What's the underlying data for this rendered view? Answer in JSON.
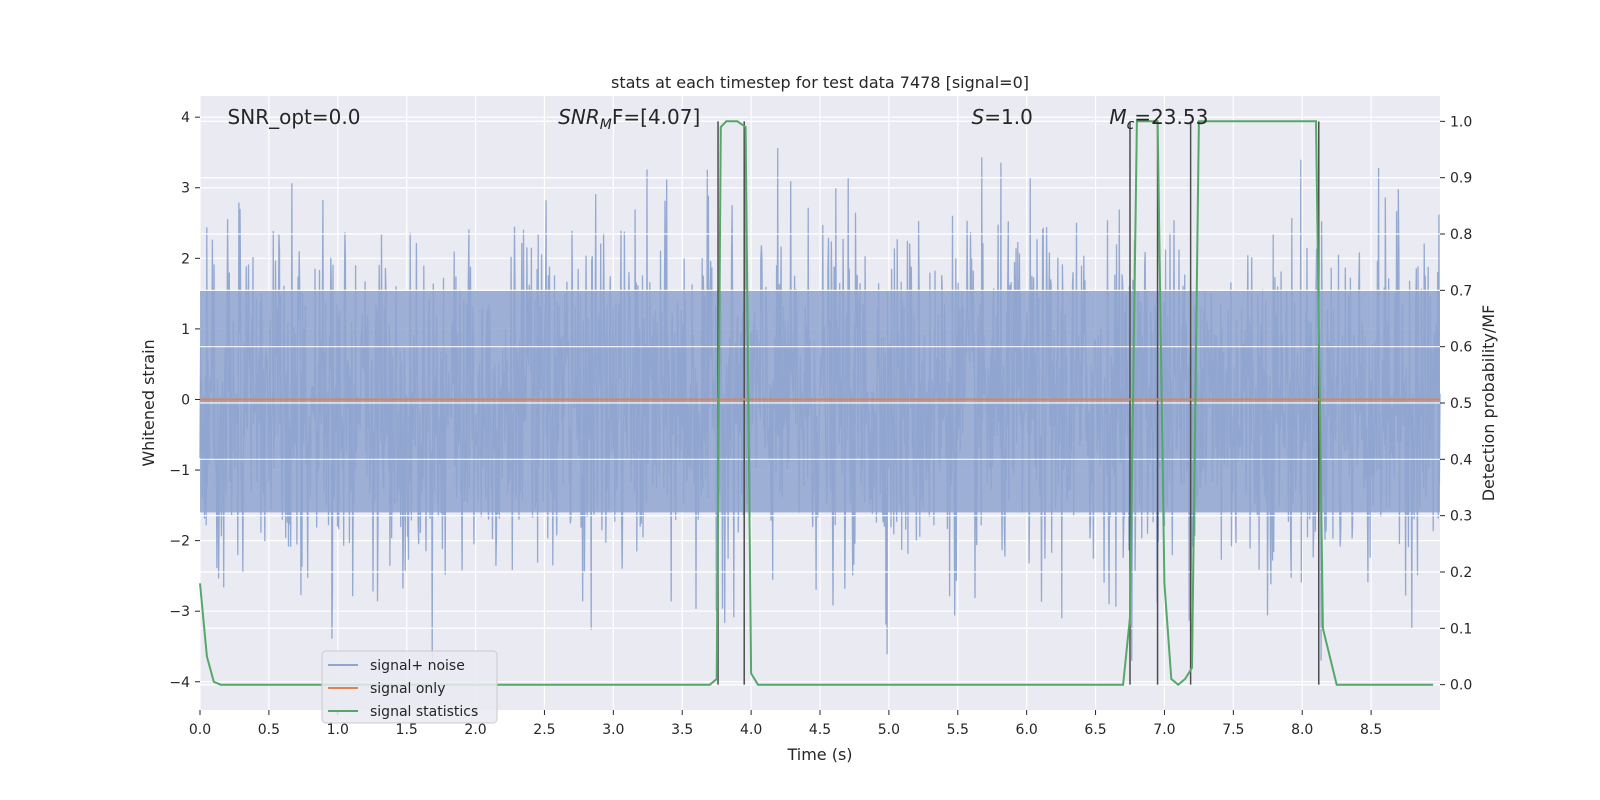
{
  "chart_data": {
    "type": "line",
    "title": "stats at each timestep for test data 7478 [signal=0]",
    "xlabel": "Time (s)",
    "ylabel": "Whitened strain",
    "y2label": "Detection probability/MF",
    "xlim": [
      0.0,
      9.0
    ],
    "ylim": [
      -4.4,
      4.3
    ],
    "y2lim": [
      -0.045,
      1.045
    ],
    "xticks": [
      0.0,
      0.5,
      1.0,
      1.5,
      2.0,
      2.5,
      3.0,
      3.5,
      4.0,
      4.5,
      5.0,
      5.5,
      6.0,
      6.5,
      7.0,
      7.5,
      8.0,
      8.5
    ],
    "xtick_labels": [
      "0.0",
      "0.5",
      "1.0",
      "1.5",
      "2.0",
      "2.5",
      "3.0",
      "3.5",
      "4.0",
      "4.5",
      "5.0",
      "5.5",
      "6.0",
      "6.5",
      "7.0",
      "7.5",
      "8.0",
      "8.5"
    ],
    "yticks": [
      -4,
      -3,
      -2,
      -1,
      0,
      1,
      2,
      3,
      4
    ],
    "ytick_labels": [
      "−4",
      "−3",
      "−2",
      "−1",
      "0",
      "1",
      "2",
      "3",
      "4"
    ],
    "y2ticks": [
      0.0,
      0.1,
      0.2,
      0.3,
      0.4,
      0.5,
      0.6,
      0.7,
      0.8,
      0.9,
      1.0
    ],
    "y2tick_labels": [
      "0.0",
      "0.1",
      "0.2",
      "0.3",
      "0.4",
      "0.5",
      "0.6",
      "0.7",
      "0.8",
      "0.9",
      "1.0"
    ],
    "grid": true,
    "legend_position": "lower-left",
    "annotations": [
      {
        "text": "SNR_opt=0.0",
        "x": 0.2
      },
      {
        "text": "SNR",
        "sub": "M",
        "tail": "F=[4.07]",
        "x": 2.6,
        "italic": true
      },
      {
        "text": "S",
        "tail": "=1.0",
        "x": 5.6,
        "italic": true
      },
      {
        "text": "M",
        "sub": "c",
        "tail": "=23.53",
        "x": 6.6,
        "italic": true
      }
    ],
    "series": [
      {
        "name": "signal+ noise",
        "color": "#8fa5cf",
        "axis": "left",
        "kind": "noise",
        "description_range": [
          -3.7,
          3.6
        ],
        "x_range": [
          0.0,
          9.0
        ]
      },
      {
        "name": "signal only",
        "color": "#dd8452",
        "axis": "left",
        "x": [
          0.0,
          9.0
        ],
        "y": [
          0.0,
          0.0
        ]
      },
      {
        "name": "signal statistics",
        "color": "#55a868",
        "axis": "right",
        "x": [
          0.0,
          0.05,
          0.1,
          0.15,
          3.7,
          3.75,
          3.78,
          3.82,
          3.9,
          3.96,
          4.0,
          4.05,
          6.7,
          6.75,
          6.8,
          6.85,
          6.95,
          7.0,
          7.05,
          7.1,
          7.15,
          7.2,
          7.25,
          8.05,
          8.1,
          8.15,
          8.25,
          8.95
        ],
        "y": [
          0.18,
          0.05,
          0.005,
          0.0,
          0.0,
          0.01,
          0.99,
          1.0,
          1.0,
          0.99,
          0.02,
          0.0,
          0.0,
          0.12,
          1.0,
          1.0,
          1.0,
          0.18,
          0.01,
          0.0,
          0.01,
          0.03,
          1.0,
          1.0,
          1.0,
          0.1,
          0.0,
          0.0
        ]
      }
    ],
    "vlines": [
      3.76,
      3.95,
      6.75,
      6.95,
      7.19,
      8.12
    ],
    "vline_color": "#4d4d4d"
  }
}
